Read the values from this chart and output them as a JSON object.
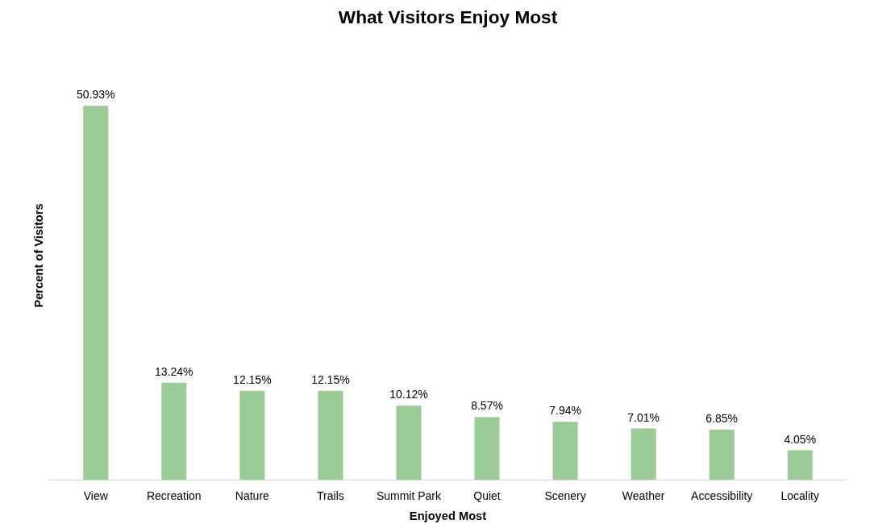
{
  "chart_data": {
    "type": "bar",
    "title": "What Visitors Enjoy Most",
    "xlabel": "Enjoyed Most",
    "ylabel": "Percent of Visitors",
    "categories": [
      "View",
      "Recreation",
      "Nature",
      "Trails",
      "Summit Park",
      "Quiet",
      "Scenery",
      "Weather",
      "Accessibility",
      "Locality"
    ],
    "values": [
      50.93,
      13.24,
      12.15,
      12.15,
      10.12,
      8.57,
      7.94,
      7.01,
      6.85,
      4.05
    ],
    "value_labels": [
      "50.93%",
      "13.24%",
      "12.15%",
      "12.15%",
      "10.12%",
      "8.57%",
      "7.94%",
      "7.01%",
      "6.85%",
      "4.05%"
    ],
    "color": "#9bcc98",
    "grid": false
  }
}
